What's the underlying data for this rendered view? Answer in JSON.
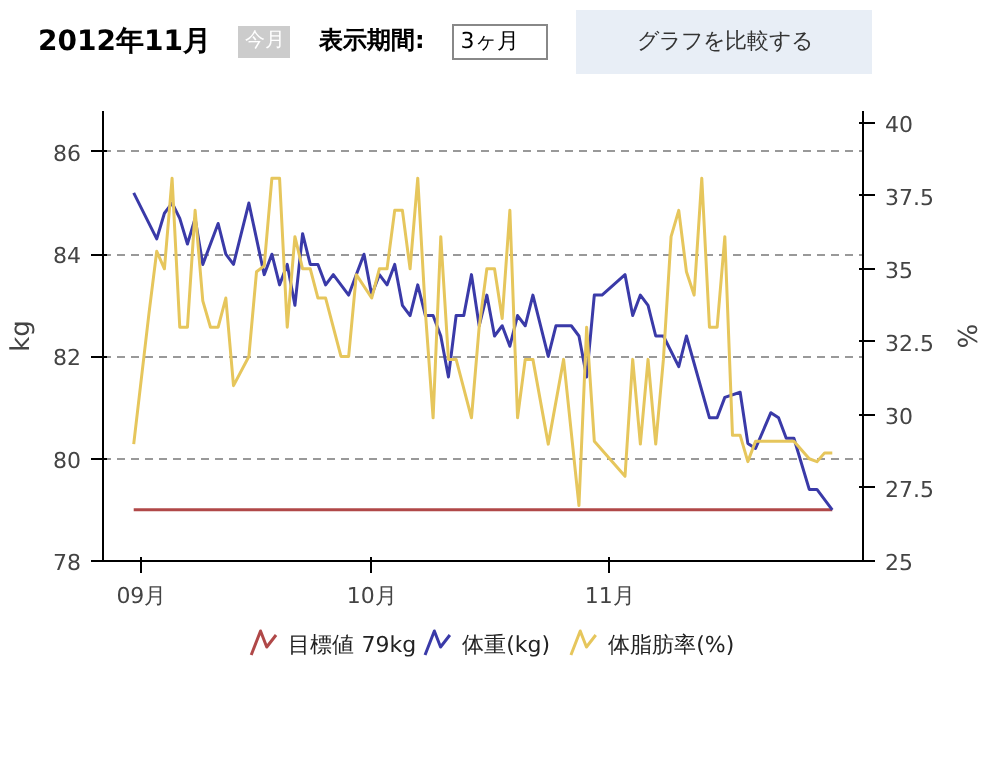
{
  "chart_data": {
    "type": "line",
    "annotations": [
      "2012年11月",
      "今月",
      "表示期間:",
      "3ヶ月",
      "グラフを比較する"
    ],
    "ylabel": "kg",
    "y2label": "%",
    "xlim": [
      "2012-08-27",
      "2012-12-04"
    ],
    "xticks": [
      {
        "value": "2012-09-01",
        "label": "09月"
      },
      {
        "value": "2012-10-01",
        "label": "10月"
      },
      {
        "value": "2012-11-01",
        "label": "11月"
      }
    ],
    "ylim": [
      78,
      86.8
    ],
    "yticks": [
      78,
      80,
      82,
      84,
      86
    ],
    "y2lim": [
      25,
      40.4
    ],
    "y2ticks": [
      25,
      27.5,
      30,
      32.5,
      35,
      37.5,
      40
    ],
    "grid": "y",
    "legend": "bottom",
    "series": [
      {
        "name": "目標値 79kg",
        "color": "#b04848",
        "x": [
          "2012-08-31",
          "2012-11-30"
        ],
        "values": [
          79,
          79
        ]
      },
      {
        "name": "体重(kg)",
        "color": "#3a3aa8",
        "x": [
          "2012-08-31",
          "2012-09-03",
          "2012-09-04",
          "2012-09-05",
          "2012-09-06",
          "2012-09-07",
          "2012-09-08",
          "2012-09-09",
          "2012-09-11",
          "2012-09-12",
          "2012-09-13",
          "2012-09-15",
          "2012-09-17",
          "2012-09-18",
          "2012-09-19",
          "2012-09-20",
          "2012-09-21",
          "2012-09-22",
          "2012-09-23",
          "2012-09-24",
          "2012-09-25",
          "2012-09-26",
          "2012-09-28",
          "2012-09-30",
          "2012-10-01",
          "2012-10-02",
          "2012-10-03",
          "2012-10-04",
          "2012-10-05",
          "2012-10-06",
          "2012-10-07",
          "2012-10-08",
          "2012-10-09",
          "2012-10-10",
          "2012-10-11",
          "2012-10-12",
          "2012-10-13",
          "2012-10-14",
          "2012-10-15",
          "2012-10-16",
          "2012-10-17",
          "2012-10-18",
          "2012-10-19",
          "2012-10-20",
          "2012-10-21",
          "2012-10-22",
          "2012-10-24",
          "2012-10-25",
          "2012-10-27",
          "2012-10-28",
          "2012-10-29",
          "2012-10-30",
          "2012-10-31",
          "2012-11-03",
          "2012-11-04",
          "2012-11-05",
          "2012-11-06",
          "2012-11-07",
          "2012-11-08",
          "2012-11-10",
          "2012-11-11",
          "2012-11-14",
          "2012-11-15",
          "2012-11-16",
          "2012-11-18",
          "2012-11-19",
          "2012-11-20",
          "2012-11-22",
          "2012-11-23",
          "2012-11-24",
          "2012-11-25",
          "2012-11-27",
          "2012-11-28",
          "2012-11-30"
        ],
        "values": [
          85.2,
          84.3,
          84.8,
          85.0,
          84.7,
          84.2,
          84.7,
          83.8,
          84.6,
          84.0,
          83.8,
          85.0,
          83.6,
          84.0,
          83.4,
          83.8,
          83.0,
          84.4,
          83.8,
          83.8,
          83.4,
          83.6,
          83.2,
          84.0,
          83.2,
          83.6,
          83.4,
          83.8,
          83.0,
          82.8,
          83.4,
          82.8,
          82.8,
          82.4,
          81.6,
          82.8,
          82.8,
          83.6,
          82.6,
          83.2,
          82.4,
          82.6,
          82.2,
          82.8,
          82.6,
          83.2,
          82.0,
          82.6,
          82.6,
          82.4,
          81.6,
          83.2,
          83.2,
          83.6,
          82.8,
          83.2,
          83.0,
          82.4,
          82.4,
          81.8,
          82.4,
          80.8,
          80.8,
          81.2,
          81.3,
          80.3,
          80.2,
          80.9,
          80.8,
          80.4,
          80.4,
          79.4,
          79.4,
          79.0
        ]
      },
      {
        "name": "体脂肪率(%)",
        "color": "#e6c65c",
        "axis": "y2",
        "x": [
          "2012-08-31",
          "2012-09-02",
          "2012-09-03",
          "2012-09-04",
          "2012-09-05",
          "2012-09-06",
          "2012-09-07",
          "2012-09-08",
          "2012-09-09",
          "2012-09-10",
          "2012-09-11",
          "2012-09-12",
          "2012-09-13",
          "2012-09-15",
          "2012-09-16",
          "2012-09-17",
          "2012-09-18",
          "2012-09-19",
          "2012-09-20",
          "2012-09-21",
          "2012-09-22",
          "2012-09-23",
          "2012-09-24",
          "2012-09-25",
          "2012-09-27",
          "2012-09-28",
          "2012-09-29",
          "2012-10-01",
          "2012-10-02",
          "2012-10-03",
          "2012-10-04",
          "2012-10-05",
          "2012-10-06",
          "2012-10-07",
          "2012-10-08",
          "2012-10-09",
          "2012-10-10",
          "2012-10-11",
          "2012-10-12",
          "2012-10-14",
          "2012-10-15",
          "2012-10-16",
          "2012-10-17",
          "2012-10-18",
          "2012-10-19",
          "2012-10-20",
          "2012-10-21",
          "2012-10-22",
          "2012-10-24",
          "2012-10-26",
          "2012-10-28",
          "2012-10-29",
          "2012-10-30",
          "2012-11-03",
          "2012-11-04",
          "2012-11-05",
          "2012-11-06",
          "2012-11-07",
          "2012-11-08",
          "2012-11-09",
          "2012-11-10",
          "2012-11-11",
          "2012-11-12",
          "2012-11-13",
          "2012-11-14",
          "2012-11-15",
          "2012-11-16",
          "2012-11-17",
          "2012-11-18",
          "2012-11-19",
          "2012-11-20",
          "2012-11-22",
          "2012-11-25",
          "2012-11-27",
          "2012-11-28",
          "2012-11-29",
          "2012-11-30"
        ],
        "values": [
          29.0,
          33.5,
          35.6,
          35.0,
          38.1,
          33.0,
          33.0,
          37.0,
          33.9,
          33.0,
          33.0,
          34.0,
          31.0,
          32.0,
          34.9,
          35.1,
          38.1,
          38.1,
          33.0,
          36.1,
          35.0,
          35.0,
          34.0,
          34.0,
          32.0,
          32.0,
          34.8,
          34.0,
          35.0,
          35.0,
          37.0,
          37.0,
          35.0,
          38.1,
          33.5,
          29.9,
          36.1,
          31.9,
          31.9,
          29.9,
          33.0,
          35.0,
          35.0,
          33.3,
          37.0,
          29.9,
          31.9,
          31.9,
          29.0,
          31.9,
          26.9,
          33.0,
          29.1,
          27.9,
          31.9,
          29.0,
          31.9,
          29.0,
          31.9,
          36.1,
          37.0,
          34.9,
          34.1,
          38.1,
          33.0,
          33.0,
          36.1,
          29.3,
          29.3,
          28.4,
          29.1,
          29.1,
          29.1,
          28.5,
          28.4,
          28.7,
          28.7
        ]
      }
    ]
  }
}
